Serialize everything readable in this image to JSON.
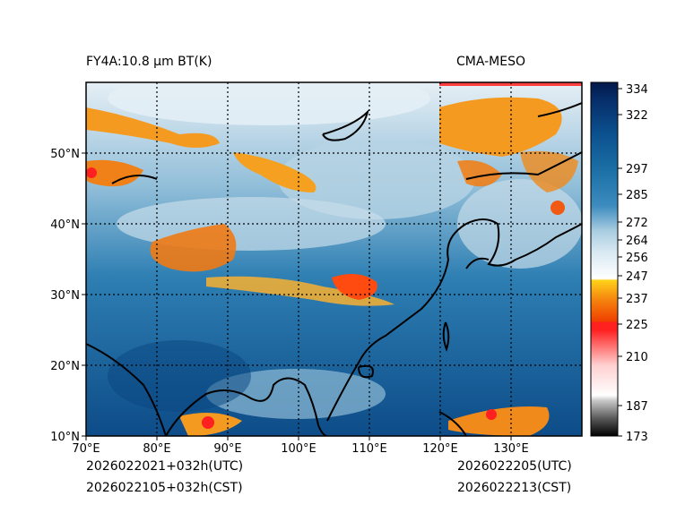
{
  "header": {
    "left_title": "FY4A:10.8 μm BT(K)",
    "right_title": "CMA-MESO"
  },
  "footer": {
    "init_utc": "2026022021+032h(UTC)",
    "init_cst": "2026022105+032h(CST)",
    "valid_utc": "2026022205(UTC)",
    "valid_cst": "2026022213(CST)"
  },
  "map": {
    "lon_range": [
      70,
      140
    ],
    "lat_range": [
      10,
      60
    ],
    "lon_ticks": [
      "70°E",
      "80°E",
      "90°E",
      "100°E",
      "110°E",
      "120°E",
      "130°E"
    ],
    "lat_ticks": [
      "10°N",
      "20°N",
      "30°N",
      "40°N",
      "50°N"
    ]
  },
  "colorbar": {
    "range": [
      173,
      336
    ],
    "ticks": [
      "173",
      "187",
      "210",
      "225",
      "237",
      "247",
      "256",
      "264",
      "272",
      "285",
      "297",
      "322",
      "334"
    ],
    "colors": {
      "black": "#000000",
      "gray": "#a0a0a0",
      "white": "#ffffff",
      "red": "#ff0000",
      "orange": "#ff8a00",
      "yellow": "#ffd21a",
      "lightblue": "#d8e9f2",
      "midblue": "#5fa2c6",
      "blue": "#1e73a8",
      "darkblue": "#083f7a",
      "navy": "#03184a"
    }
  }
}
